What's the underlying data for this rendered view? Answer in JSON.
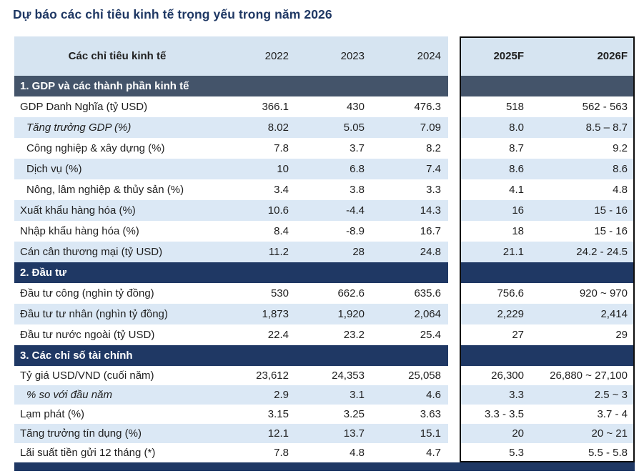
{
  "title": "Dự báo các chỉ tiêu kinh tế trọng yếu trong năm 2026",
  "colors": {
    "title_navy": "#1f3864",
    "header_blue": "#d6e4f1",
    "stripe_blue": "#dbe8f5",
    "section1_bar": "#44546a",
    "section2_bar": "#1f3864",
    "section3_bar": "#1f3864",
    "bottom_bar": "#1f3864",
    "box_border": "#0d0d0d"
  },
  "table": {
    "columns": [
      "Các chỉ tiêu kinh tế",
      "2022",
      "2023",
      "2024",
      "2025F",
      "2026F"
    ],
    "sections": [
      {
        "header": "1. GDP và các thành phần kinh tế",
        "bar_color": "#44546a",
        "rows": [
          {
            "label": "GDP Danh Nghĩa (tỷ USD)",
            "italic": false,
            "indent": false,
            "values": [
              "366.1",
              "430",
              "476.3",
              "518",
              "562 - 563"
            ]
          },
          {
            "label": "Tăng trưởng GDP (%)",
            "italic": true,
            "indent": true,
            "values": [
              "8.02",
              "5.05",
              "7.09",
              "8.0",
              "8.5 – 8.7"
            ]
          },
          {
            "label": "Công nghiệp & xây dựng (%)",
            "italic": false,
            "indent": true,
            "values": [
              "7.8",
              "3.7",
              "8.2",
              "8.7",
              "9.2"
            ]
          },
          {
            "label": "Dịch vụ (%)",
            "italic": false,
            "indent": true,
            "values": [
              "10",
              "6.8",
              "7.4",
              "8.6",
              "8.6"
            ]
          },
          {
            "label": "Nông, lâm nghiệp & thủy sản (%)",
            "italic": false,
            "indent": true,
            "values": [
              "3.4",
              "3.8",
              "3.3",
              "4.1",
              "4.8"
            ]
          },
          {
            "label": "Xuất khẩu hàng hóa (%)",
            "italic": false,
            "indent": false,
            "values": [
              "10.6",
              "-4.4",
              "14.3",
              "16",
              "15 - 16"
            ]
          },
          {
            "label": "Nhập khẩu hàng hóa (%)",
            "italic": false,
            "indent": false,
            "values": [
              "8.4",
              "-8.9",
              "16.7",
              "18",
              "15 - 16"
            ]
          },
          {
            "label": "Cán cân thương mại (tỷ USD)",
            "italic": false,
            "indent": false,
            "values": [
              "11.2",
              "28",
              "24.8",
              "21.1",
              "24.2 - 24.5"
            ]
          }
        ]
      },
      {
        "header": "2. Đầu tư",
        "bar_color": "#1f3864",
        "rows": [
          {
            "label": "Đầu tư công (nghìn tỷ đồng)",
            "italic": false,
            "indent": false,
            "values": [
              "530",
              "662.6",
              "635.6",
              "756.6",
              "920 ~ 970"
            ]
          },
          {
            "label": "Đầu tư tư nhân (nghìn tỷ đồng)",
            "italic": false,
            "indent": false,
            "values": [
              "1,873",
              "1,920",
              "2,064",
              "2,229",
              "2,414"
            ]
          },
          {
            "label": "Đầu tư nước ngoài (tỷ USD)",
            "italic": false,
            "indent": false,
            "values": [
              "22.4",
              "23.2",
              "25.4",
              "27",
              "29"
            ]
          }
        ]
      },
      {
        "header": "3. Các chỉ số tài chính",
        "bar_color": "#1f3864",
        "rows": [
          {
            "label": "Tỷ giá USD/VND (cuối năm)",
            "italic": false,
            "indent": false,
            "values": [
              "23,612",
              "24,353",
              "25,058",
              "26,300",
              "26,880 ~ 27,100"
            ]
          },
          {
            "label": "% so với đầu năm",
            "italic": true,
            "indent": true,
            "values": [
              "2.9",
              "3.1",
              "4.6",
              "3.3",
              "2.5 ~ 3"
            ]
          },
          {
            "label": "Lạm phát (%)",
            "italic": false,
            "indent": false,
            "values": [
              "3.15",
              "3.25",
              "3.63",
              "3.3 - 3.5",
              "3.7 - 4"
            ]
          },
          {
            "label": "Tăng trưởng tín dụng (%)",
            "italic": false,
            "indent": false,
            "values": [
              "12.1",
              "13.7",
              "15.1",
              "20",
              "20 ~ 21"
            ]
          },
          {
            "label": "Lãi suất tiền gửi 12 tháng (*)",
            "italic": false,
            "indent": false,
            "values": [
              "7.8",
              "4.8",
              "4.7",
              "5.3",
              "5.5 - 5.8"
            ]
          }
        ]
      }
    ]
  }
}
